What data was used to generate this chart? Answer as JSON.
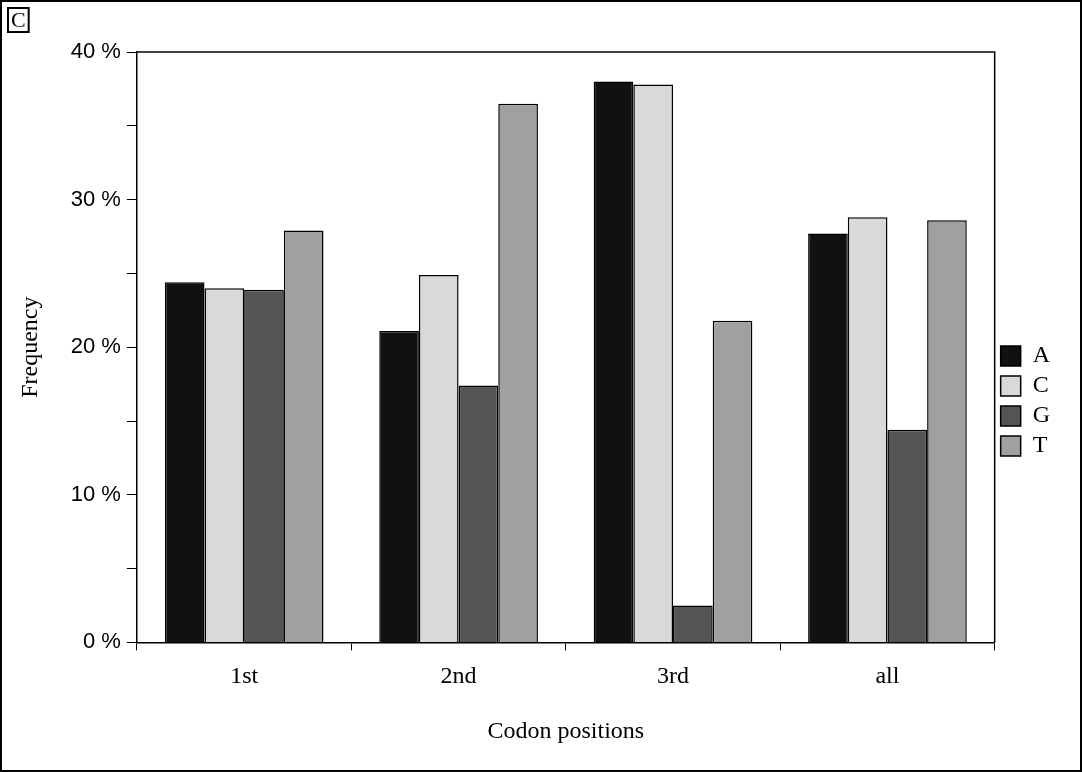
{
  "chart_data": {
    "type": "bar",
    "xlabel": "Codon positions",
    "ylabel": "Frequency",
    "annotations": [
      "C"
    ],
    "categories": [
      "1st",
      "2nd",
      "3rd",
      "all"
    ],
    "series": [
      {
        "name": "A",
        "color": "#111111",
        "values": [
          24.4,
          21.1,
          38.0,
          27.7
        ]
      },
      {
        "name": "C",
        "color": "#d9d9d9",
        "values": [
          24.0,
          24.9,
          37.8,
          28.8
        ]
      },
      {
        "name": "G",
        "color": "#555555",
        "values": [
          23.9,
          17.4,
          2.5,
          14.4
        ]
      },
      {
        "name": "T",
        "color": "#a0a0a0",
        "values": [
          27.9,
          36.5,
          21.8,
          28.6
        ]
      }
    ],
    "ylim": [
      0,
      40
    ],
    "yticks": [
      {
        "value": 0,
        "label": "0 %"
      },
      {
        "value": 5,
        "label": null
      },
      {
        "value": 10,
        "label": "10 %"
      },
      {
        "value": 15,
        "label": null
      },
      {
        "value": 20,
        "label": "20 %"
      },
      {
        "value": 25,
        "label": null
      },
      {
        "value": 30,
        "label": "30 %"
      },
      {
        "value": 35,
        "label": null
      },
      {
        "value": 40,
        "label": "40 %"
      }
    ],
    "grid": false,
    "legend": "right"
  }
}
